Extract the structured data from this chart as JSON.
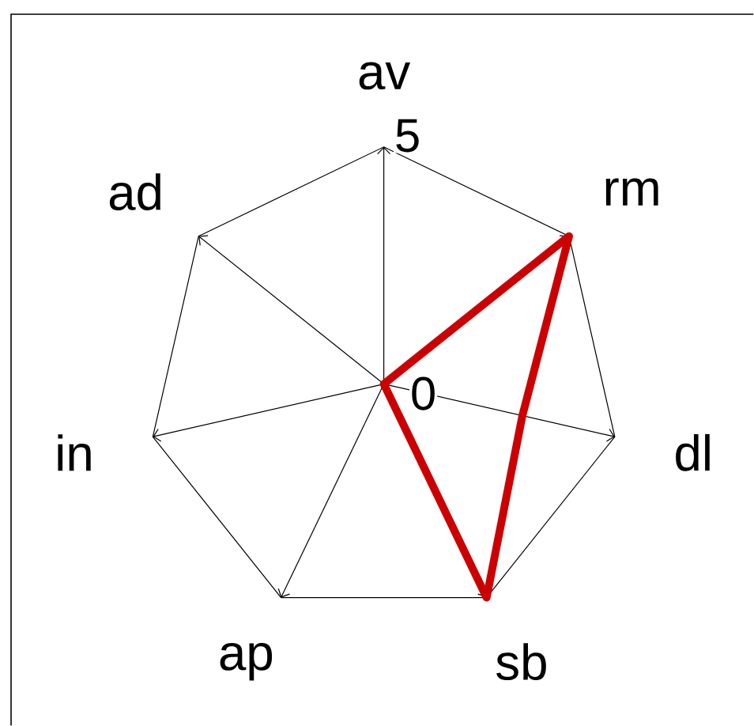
{
  "chart_data": {
    "type": "radar",
    "categories": [
      "av",
      "rm",
      "dl",
      "sb",
      "ap",
      "in",
      "ad"
    ],
    "series": [
      {
        "color": "#cc0000",
        "values": [
          0,
          5,
          3,
          5,
          0,
          0,
          0
        ]
      }
    ],
    "ylim": [
      0,
      5
    ],
    "yticks": [
      0,
      5
    ],
    "grid": true
  }
}
